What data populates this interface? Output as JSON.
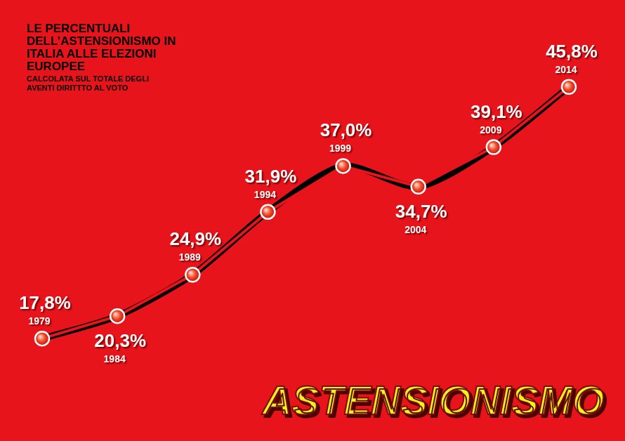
{
  "chart_data": {
    "type": "line",
    "title": "LE PERCENTUALI DELL’ASTENSIONISMO IN ITALIA ALLE ELEZIONI EUROPEE",
    "subtitle": "CALCOLATA SUL TOTALE DEGLI AVENTI DIRITTTO AL VOTO",
    "annotations": [
      "ASTENSIONISMO"
    ],
    "categories": [
      "1979",
      "1984",
      "1989",
      "1994",
      "1999",
      "2004",
      "2009",
      "2014"
    ],
    "values": [
      17.8,
      20.3,
      24.9,
      31.9,
      37.0,
      34.7,
      39.1,
      45.8
    ],
    "value_labels": [
      "17,8%",
      "20,3%",
      "24,9%",
      "31,9%",
      "37,0%",
      "34,7%",
      "39,1%",
      "45,8%"
    ],
    "color": "#e8141b",
    "marker": "circle",
    "data_labels": true,
    "grid": false,
    "tick_labels": false
  }
}
